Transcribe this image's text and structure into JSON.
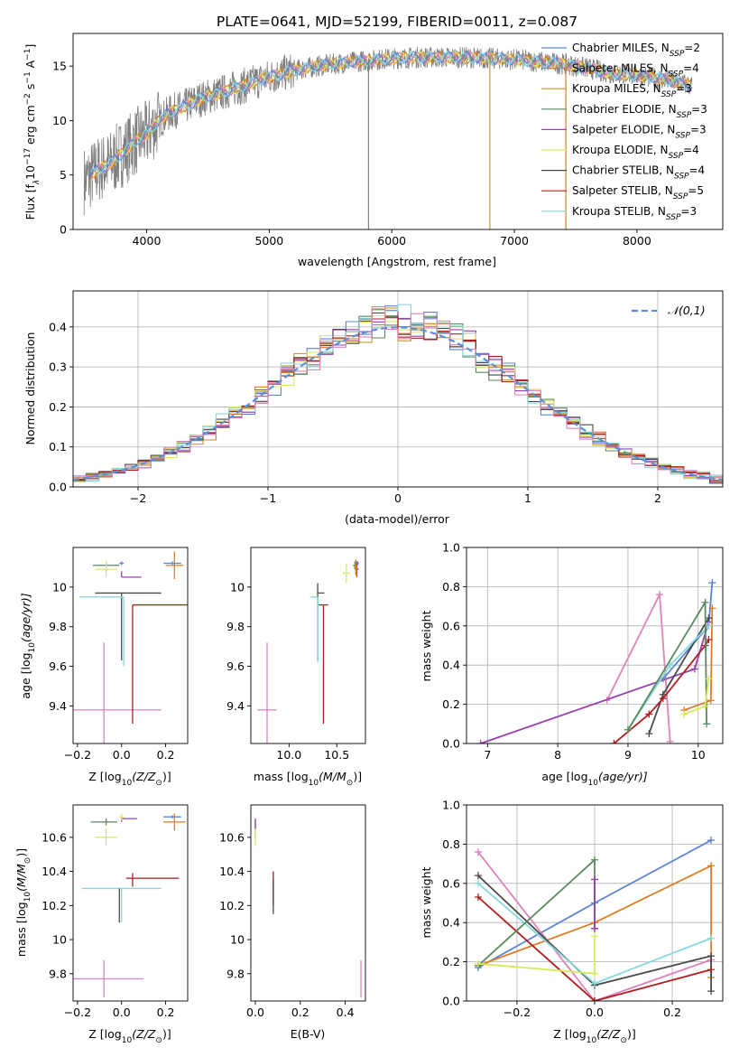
{
  "figure": {
    "title": "PLATE=0641, MJD=52199, FIBERID=0011, z=0.087"
  },
  "colors": {
    "chabrier_miles": "#5b84d8",
    "salpeter_miles": "#e07c24",
    "kroupa_miles": "#c99a2e",
    "chabrier_elodie": "#5a8a5e",
    "salpeter_elodie": "#9a3fb0",
    "kroupa_elodie": "#d8ea5c",
    "chabrier_stelib": "#4a4a4a",
    "salpeter_stelib": "#b01e1e",
    "kroupa_stelib": "#86d8dc",
    "extra_pink": "#e083bd",
    "data": "#7f7f7f",
    "normal_curve": "#5b8fd8",
    "grid": "#b0b0b0"
  },
  "chart_data": [
    {
      "type": "line",
      "panel": "spectrum",
      "xlabel": "wavelength [Angstrom, rest frame]",
      "ylabel_main": "Flux [f",
      "ylabel_sub": "λ",
      "ylabel_rest": "10",
      "ylabel_exp": "−17",
      "ylabel_units": " erg cm",
      "ylabel_exp2": "−2",
      "ylabel_units2": " s",
      "ylabel_exp3": "−1",
      "ylabel_units3": " A",
      "ylabel_exp4": "−1",
      "ylabel_end": "]",
      "xlim": [
        3400,
        8700
      ],
      "ylim": [
        0,
        18
      ],
      "xticks": [
        4000,
        5000,
        6000,
        7000,
        8000
      ],
      "yticks": [
        0,
        5,
        10,
        15
      ],
      "grid": false,
      "legend_position": "right",
      "legend": [
        {
          "pre": "Chabrier MILES, N",
          "sub": "SSP",
          "post": "=2",
          "color_key": "chabrier_miles"
        },
        {
          "pre": "Salpeter MILES, N",
          "sub": "SSP",
          "post": "=4",
          "color_key": "salpeter_miles"
        },
        {
          "pre": "Kroupa MILES, N",
          "sub": "SSP",
          "post": "=3",
          "color_key": "kroupa_miles"
        },
        {
          "pre": "Chabrier ELODIE, N",
          "sub": "SSP",
          "post": "=3",
          "color_key": "chabrier_elodie"
        },
        {
          "pre": "Salpeter ELODIE, N",
          "sub": "SSP",
          "post": "=3",
          "color_key": "salpeter_elodie"
        },
        {
          "pre": "Kroupa ELODIE, N",
          "sub": "SSP",
          "post": "=4",
          "color_key": "kroupa_elodie"
        },
        {
          "pre": "Chabrier STELIB, N",
          "sub": "SSP",
          "post": "=4",
          "color_key": "chabrier_stelib"
        },
        {
          "pre": "Salpeter STELIB, N",
          "sub": "SSP",
          "post": "=5",
          "color_key": "salpeter_stelib"
        },
        {
          "pre": "Kroupa STELIB, N",
          "sub": "SSP",
          "post": "=3",
          "color_key": "kroupa_stelib"
        }
      ],
      "spectrum_anchors_x": [
        3500,
        3600,
        3700,
        3800,
        3900,
        4000,
        4100,
        4200,
        4300,
        4400,
        4500,
        4600,
        4700,
        4800,
        4900,
        5000,
        5200,
        5400,
        5600,
        5800,
        6000,
        6200,
        6400,
        6600,
        6800,
        7000,
        7200,
        7400,
        7600,
        7800,
        8000,
        8200,
        8450
      ],
      "spectrum_anchors_y": [
        4.5,
        5.5,
        6.0,
        7.0,
        8.0,
        8.7,
        10.0,
        10.8,
        11.2,
        11.8,
        12.2,
        12.5,
        12.9,
        13.2,
        13.6,
        14.0,
        14.6,
        15.0,
        15.3,
        15.5,
        15.7,
        15.8,
        15.8,
        15.8,
        15.7,
        15.6,
        15.4,
        15.2,
        14.8,
        14.3,
        14.2,
        13.8,
        13.2
      ],
      "data_xrange": [
        3490,
        8450
      ],
      "model_xrange": [
        3540,
        8450
      ],
      "spikes": [
        {
          "x": 5810,
          "y": 0,
          "color_key": "data"
        },
        {
          "x": 6800,
          "y": 0,
          "color_key": "kroupa_miles"
        },
        {
          "x": 7420,
          "y": 0,
          "color_key": "salpeter_miles"
        }
      ]
    },
    {
      "type": "line",
      "panel": "residual_histogram",
      "xlabel": "(data-model)/error",
      "ylabel": "Normed distribution",
      "xlim": [
        -2.5,
        2.5
      ],
      "ylim": [
        0,
        0.49
      ],
      "xticks": [
        -2,
        -1,
        0,
        1,
        2
      ],
      "yticks": [
        0.0,
        0.1,
        0.2,
        0.3,
        0.4
      ],
      "grid": true,
      "legend_position": "top-right",
      "legend": [
        {
          "label": "𝒩(0,1)",
          "color_key": "normal_curve",
          "style": "dashed"
        }
      ],
      "bin_width": 0.1,
      "mean": 0,
      "sigma": 1,
      "histogram_series_color_keys": [
        "chabrier_miles",
        "salpeter_miles",
        "kroupa_miles",
        "chabrier_elodie",
        "salpeter_elodie",
        "kroupa_elodie",
        "chabrier_stelib",
        "salpeter_stelib",
        "kroupa_stelib",
        "extra_pink"
      ]
    },
    {
      "type": "scatter",
      "panel": "age_vs_Z",
      "xlabel_pre": "Z [log",
      "xlabel_sub": "10",
      "xlabel_post": "(Z/Z",
      "xlabel_sub2": "⊙",
      "xlabel_end": ")]",
      "ylabel_pre": "age  [log",
      "ylabel_sub": "10",
      "ylabel_post": "(age/yr)]",
      "xlim": [
        -0.22,
        0.3
      ],
      "ylim": [
        9.21,
        10.2
      ],
      "xticks": [
        -0.2,
        0.0,
        0.2
      ],
      "xticklabels": [
        "−0.2",
        "0.0",
        "0.2"
      ],
      "yticks": [
        9.4,
        9.6,
        9.8,
        10.0
      ],
      "grid": false,
      "points": [
        {
          "x": -0.08,
          "y": 9.38,
          "xerr": 0.26,
          "yerr": 0.34,
          "color_key": "extra_pink",
          "errtype": "sym"
        },
        {
          "x": 0.05,
          "y": 9.91,
          "xerr": [
            0.0,
            0.25
          ],
          "yerr": [
            0.6,
            0.0
          ],
          "color_key": "salpeter_stelib"
        },
        {
          "x": 0.0,
          "y": 9.97,
          "xerr": [
            0.12,
            0.18
          ],
          "yerr": [
            0.34,
            0.0
          ],
          "color_key": "chabrier_stelib"
        },
        {
          "x": 0.01,
          "y": 9.95,
          "xerr": [
            0.2,
            0.0
          ],
          "yerr": [
            0.35,
            0.0
          ],
          "color_key": "kroupa_stelib"
        },
        {
          "x": -0.07,
          "y": 10.11,
          "xerr": [
            0.06,
            0.06
          ],
          "yerr": [
            0.0,
            0.02
          ],
          "color_key": "chabrier_elodie"
        },
        {
          "x": -0.07,
          "y": 10.09,
          "xerr": 0.05,
          "yerr": 0.04,
          "color_key": "kroupa_elodie"
        },
        {
          "x": 0.0,
          "y": 10.12,
          "xerr": 0.01,
          "yerr": 0.01,
          "color_key": "chabrier_miles"
        },
        {
          "x": 0.0,
          "y": 10.05,
          "xerr": [
            0.0,
            0.09
          ],
          "yerr": [
            0.0,
            0.03
          ],
          "color_key": "salpeter_elodie"
        },
        {
          "x": 0.23,
          "y": 10.12,
          "xerr": 0.04,
          "yerr": 0.01,
          "color_key": "chabrier_miles"
        },
        {
          "x": 0.24,
          "y": 10.11,
          "xerr": 0.04,
          "yerr": 0.07,
          "color_key": "salpeter_miles"
        }
      ]
    },
    {
      "type": "scatter",
      "panel": "age_vs_mass",
      "xlabel_pre": "mass [log",
      "xlabel_sub": "10",
      "xlabel_post": "(M/M",
      "xlabel_sub2": "⊙",
      "xlabel_end": ")]",
      "xlim": [
        9.6,
        10.8
      ],
      "ylim": [
        9.21,
        10.2
      ],
      "xticks": [
        10.0,
        10.5
      ],
      "xticklabels": [
        "10.0",
        "10.5"
      ],
      "yticks": [
        9.4,
        9.6,
        9.8,
        10.0
      ],
      "grid": false,
      "points": [
        {
          "x": 9.77,
          "y": 9.38,
          "xerr": 0.1,
          "yerr": 0.34,
          "color_key": "extra_pink"
        },
        {
          "x": 10.36,
          "y": 9.91,
          "xerr": [
            0.05,
            0.05
          ],
          "yerr": [
            0.6,
            0.0
          ],
          "color_key": "salpeter_stelib"
        },
        {
          "x": 10.3,
          "y": 9.97,
          "xerr": [
            0.0,
            0.07
          ],
          "yerr": [
            0.34,
            0.05
          ],
          "color_key": "chabrier_stelib"
        },
        {
          "x": 10.3,
          "y": 9.95,
          "xerr": [
            0.08,
            0.0
          ],
          "yerr": [
            0.33,
            0.0
          ],
          "color_key": "kroupa_stelib"
        },
        {
          "x": 10.6,
          "y": 10.07,
          "xerr": 0.04,
          "yerr": 0.05,
          "color_key": "kroupa_elodie"
        },
        {
          "x": 10.69,
          "y": 10.11,
          "xerr": 0.02,
          "yerr": 0.02,
          "color_key": "chabrier_elodie"
        },
        {
          "x": 10.71,
          "y": 10.09,
          "xerr": 0.02,
          "yerr": 0.04,
          "color_key": "salpeter_elodie"
        },
        {
          "x": 10.72,
          "y": 10.12,
          "xerr": 0.01,
          "yerr": 0.01,
          "color_key": "chabrier_miles"
        },
        {
          "x": 10.7,
          "y": 10.1,
          "xerr": 0.02,
          "yerr": 0.04,
          "color_key": "salpeter_miles"
        }
      ]
    },
    {
      "type": "line",
      "panel": "massweight_vs_age",
      "xlabel_pre": "age  [log",
      "xlabel_sub": "10",
      "xlabel_post": "(age/yr)]",
      "ylabel": "mass weight",
      "xlim": [
        6.7,
        10.35
      ],
      "ylim": [
        0.0,
        1.0
      ],
      "xticks": [
        7,
        8,
        9,
        10
      ],
      "yticks": [
        0.0,
        0.2,
        0.4,
        0.6,
        0.8,
        1.0
      ],
      "grid": true,
      "series": [
        {
          "color_key": "extra_pink",
          "x": [
            8.7,
            9.45,
            9.6
          ],
          "y": [
            0.22,
            0.76,
            0.01
          ]
        },
        {
          "color_key": "salpeter_elodie",
          "x": [
            6.9,
            9.95,
            10.15
          ],
          "y": [
            0.0,
            0.38,
            0.62
          ]
        },
        {
          "color_key": "chabrier_miles",
          "x": [
            9.5,
            10.15,
            10.2
          ],
          "y": [
            0.33,
            0.6,
            0.82
          ]
        },
        {
          "color_key": "salpeter_miles",
          "x": [
            9.8,
            10.18,
            10.2
          ],
          "y": [
            0.17,
            0.22,
            0.69
          ]
        },
        {
          "color_key": "chabrier_stelib",
          "x": [
            9.3,
            9.5,
            10.15
          ],
          "y": [
            0.05,
            0.25,
            0.64
          ]
        },
        {
          "color_key": "salpeter_stelib",
          "x": [
            8.8,
            9.3,
            9.5,
            10.1,
            10.15
          ],
          "y": [
            0.0,
            0.15,
            0.23,
            0.5,
            0.53
          ]
        },
        {
          "color_key": "kroupa_stelib",
          "x": [
            9.0,
            9.6,
            10.15
          ],
          "y": [
            0.07,
            0.4,
            0.6
          ]
        },
        {
          "color_key": "chabrier_elodie",
          "x": [
            9.0,
            10.1,
            10.12
          ],
          "y": [
            0.07,
            0.72,
            0.1
          ]
        },
        {
          "color_key": "kroupa_elodie",
          "x": [
            9.8,
            10.1,
            10.15
          ],
          "y": [
            0.15,
            0.19,
            0.33
          ]
        }
      ]
    },
    {
      "type": "scatter",
      "panel": "mass_vs_Z",
      "xlabel_pre": "Z [log",
      "xlabel_sub": "10",
      "xlabel_post": "(Z/Z",
      "xlabel_sub2": "⊙",
      "xlabel_end": ")]",
      "ylabel_pre": "mass [log",
      "ylabel_sub": "10",
      "ylabel_post": "(M/M",
      "ylabel_sub2": "⊙",
      "ylabel_end": ")]",
      "xlim": [
        -0.22,
        0.3
      ],
      "ylim": [
        9.64,
        10.79
      ],
      "xticks": [
        -0.2,
        0.0,
        0.2
      ],
      "xticklabels": [
        "−0.2",
        "0.0",
        "0.2"
      ],
      "yticks": [
        9.8,
        10.0,
        10.2,
        10.4,
        10.6
      ],
      "grid": false,
      "points": [
        {
          "x": -0.08,
          "y": 9.77,
          "xerr": 0.18,
          "yerr": 0.11,
          "color_key": "extra_pink"
        },
        {
          "x": 0.05,
          "y": 10.36,
          "xerr": [
            0.03,
            0.21
          ],
          "yerr": [
            0.05,
            0.03
          ],
          "color_key": "salpeter_stelib"
        },
        {
          "x": 0.0,
          "y": 10.3,
          "xerr": [
            0.18,
            0.18
          ],
          "yerr": [
            0.2,
            0.0
          ],
          "color_key": "kroupa_stelib"
        },
        {
          "x": -0.01,
          "y": 10.3,
          "xerr": 0.0,
          "yerr": [
            0.2,
            0.0
          ],
          "color_key": "chabrier_stelib"
        },
        {
          "x": -0.07,
          "y": 10.6,
          "xerr": [
            0.05,
            0.05
          ],
          "yerr": [
            0.05,
            0.05
          ],
          "color_key": "kroupa_elodie"
        },
        {
          "x": -0.07,
          "y": 10.69,
          "xerr": [
            0.07,
            0.05
          ],
          "yerr": [
            0.02,
            0.02
          ],
          "color_key": "chabrier_elodie"
        },
        {
          "x": 0.0,
          "y": 10.71,
          "xerr": [
            0.0,
            0.07
          ],
          "yerr": [
            0.02,
            0.01
          ],
          "color_key": "salpeter_elodie"
        },
        {
          "x": 0.0,
          "y": 10.72,
          "xerr": 0.01,
          "yerr": 0.02,
          "color_key": "kroupa_elodie"
        },
        {
          "x": 0.23,
          "y": 10.72,
          "xerr": 0.04,
          "yerr": 0.01,
          "color_key": "chabrier_miles"
        },
        {
          "x": 0.24,
          "y": 10.69,
          "xerr": 0.05,
          "yerr": 0.05,
          "color_key": "salpeter_miles"
        }
      ]
    },
    {
      "type": "scatter",
      "panel": "mass_vs_ebv",
      "xlabel": "E(B-V)",
      "xlim": [
        -0.02,
        0.49
      ],
      "ylim": [
        9.64,
        10.79
      ],
      "xticks": [
        0.0,
        0.2,
        0.4
      ],
      "xticklabels": [
        "0.0",
        "0.2",
        "0.4"
      ],
      "yticks": [
        9.8,
        10.0,
        10.2,
        10.4,
        10.6
      ],
      "grid": false,
      "points": [
        {
          "x": 0.0,
          "y": 10.65,
          "xerr": 0.0,
          "yerr": 0.05,
          "color_key": "chabrier_miles"
        },
        {
          "x": 0.0,
          "y": 10.68,
          "xerr": 0.0,
          "yerr": 0.03,
          "color_key": "salpeter_elodie"
        },
        {
          "x": 0.0,
          "y": 10.6,
          "xerr": 0.0,
          "yerr": 0.05,
          "color_key": "kroupa_elodie"
        },
        {
          "x": 0.08,
          "y": 10.3,
          "xerr": 0.0,
          "yerr": 0.1,
          "color_key": "kroupa_stelib"
        },
        {
          "x": 0.08,
          "y": 10.3,
          "xerr": 0.0,
          "yerr": 0.1,
          "color_key": "salpeter_stelib"
        },
        {
          "x": 0.08,
          "y": 10.25,
          "xerr": 0.0,
          "yerr": 0.1,
          "color_key": "chabrier_stelib"
        },
        {
          "x": 0.47,
          "y": 9.77,
          "xerr": 0.0,
          "yerr": 0.11,
          "color_key": "extra_pink"
        }
      ]
    },
    {
      "type": "line",
      "panel": "massweight_vs_Z",
      "xlabel_pre": "Z [log",
      "xlabel_sub": "10",
      "xlabel_post": "(Z/Z",
      "xlabel_sub2": "⊙",
      "xlabel_end": ")]",
      "ylabel": "mass weight",
      "xlim": [
        -0.33,
        0.33
      ],
      "ylim": [
        0.0,
        1.0
      ],
      "xticks": [
        -0.2,
        0.0,
        0.2
      ],
      "xticklabels": [
        "−0.2",
        "0.0",
        "0.2"
      ],
      "yticks": [
        0.0,
        0.2,
        0.4,
        0.6,
        0.8,
        1.0
      ],
      "grid": true,
      "series": [
        {
          "color_key": "chabrier_miles",
          "x": [
            -0.3,
            0.0,
            0.3
          ],
          "y": [
            0.17,
            0.5,
            0.82
          ]
        },
        {
          "color_key": "salpeter_miles",
          "x": [
            -0.3,
            0.0,
            0.3,
            0.3
          ],
          "y": [
            0.18,
            0.4,
            0.69,
            0.12
          ]
        },
        {
          "color_key": "extra_pink",
          "x": [
            -0.3,
            0.0,
            0.3
          ],
          "y": [
            0.76,
            0.0,
            0.21
          ]
        },
        {
          "color_key": "chabrier_stelib",
          "x": [
            -0.3,
            0.0,
            0.3,
            0.3
          ],
          "y": [
            0.64,
            0.08,
            0.23,
            0.05
          ]
        },
        {
          "color_key": "salpeter_stelib",
          "x": [
            -0.3,
            0.0,
            0.3
          ],
          "y": [
            0.53,
            0.0,
            0.16
          ]
        },
        {
          "color_key": "kroupa_stelib",
          "x": [
            -0.3,
            0.0,
            0.3
          ],
          "y": [
            0.6,
            0.09,
            0.32
          ]
        },
        {
          "color_key": "chabrier_elodie",
          "x": [
            -0.3,
            0.0,
            0.0
          ],
          "y": [
            0.18,
            0.72,
            0.37
          ]
        },
        {
          "color_key": "salpeter_elodie",
          "x": [
            0.0,
            0.0
          ],
          "y": [
            0.62,
            0.37
          ]
        },
        {
          "color_key": "kroupa_elodie",
          "x": [
            -0.3,
            0.0,
            0.0
          ],
          "y": [
            0.19,
            0.14,
            0.33
          ]
        }
      ]
    }
  ]
}
